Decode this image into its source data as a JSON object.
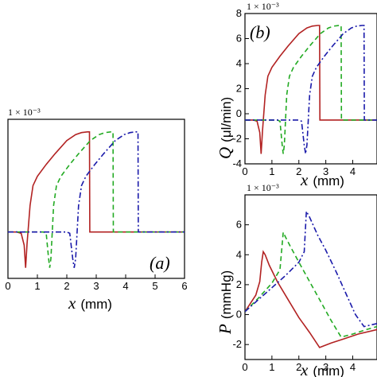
{
  "chart_data": [
    {
      "id": "a",
      "type": "line",
      "panel_label": "(a)",
      "multiplier": "1 × 10⁻³",
      "xlabel": "x",
      "xunit": "(mm)",
      "xlim": [
        0,
        6
      ],
      "xticks": [
        "0",
        "1",
        "2",
        "3",
        "4",
        "5",
        "6"
      ],
      "ylim": [
        -4,
        8
      ],
      "grid": false,
      "series": [
        {
          "color": "#b22222",
          "dash": "solid",
          "x": [
            0,
            0.3,
            0.45,
            0.55,
            0.6,
            0.65,
            0.75,
            0.85,
            1.0,
            1.3,
            1.6,
            2.0,
            2.3,
            2.5,
            2.7,
            2.77,
            2.78,
            2.8,
            3.5,
            4.5,
            6.0
          ],
          "y": [
            -0.5,
            -0.5,
            -0.6,
            -1.5,
            -3.2,
            -1.4,
            1.5,
            3.0,
            3.7,
            4.6,
            5.4,
            6.4,
            6.85,
            7.0,
            7.05,
            7.05,
            -0.5,
            -0.5,
            -0.5,
            -0.5,
            -0.5
          ]
        },
        {
          "color": "#22aa22",
          "dash": "6,4",
          "x": [
            0,
            1.2,
            1.3,
            1.38,
            1.42,
            1.46,
            1.55,
            1.65,
            1.8,
            2.1,
            2.4,
            2.8,
            3.1,
            3.3,
            3.5,
            3.57,
            3.58,
            3.6,
            4.5,
            6.0
          ],
          "y": [
            -0.5,
            -0.5,
            -0.6,
            -2.5,
            -3.2,
            -2.5,
            1.5,
            3.0,
            3.7,
            4.6,
            5.4,
            6.4,
            6.85,
            7.0,
            7.05,
            7.05,
            -0.5,
            -0.5,
            -0.5,
            -0.5
          ]
        },
        {
          "color": "#1a1aaa",
          "dash": "7,3,2,3",
          "x": [
            0,
            2.0,
            2.1,
            2.2,
            2.25,
            2.3,
            2.4,
            2.5,
            2.65,
            2.95,
            3.25,
            3.65,
            3.95,
            4.15,
            4.35,
            4.42,
            4.43,
            4.45,
            5.0,
            6.0
          ],
          "y": [
            -0.5,
            -0.5,
            -0.6,
            -2.5,
            -3.2,
            -2.5,
            1.5,
            3.0,
            3.7,
            4.6,
            5.4,
            6.4,
            6.85,
            7.0,
            7.05,
            7.05,
            -0.5,
            -0.5,
            -0.5,
            -0.5
          ]
        }
      ]
    },
    {
      "id": "b",
      "type": "line",
      "panel_label": "(b)",
      "multiplier": "1 × 10⁻³",
      "ylabel": "Q",
      "yunit": "(μl/min)",
      "xlabel": "x",
      "xunit": "(mm)",
      "xlim": [
        0,
        4.9
      ],
      "xticks": [
        "0",
        "1",
        "2",
        "3",
        "4"
      ],
      "ylim": [
        -4,
        8
      ],
      "yticks": [
        "-4",
        "-2",
        "0",
        "2",
        "4",
        "6",
        "8"
      ],
      "grid": false,
      "series": [
        {
          "color": "#b22222",
          "dash": "solid",
          "x": [
            0,
            0.3,
            0.45,
            0.55,
            0.6,
            0.65,
            0.75,
            0.85,
            1.0,
            1.3,
            1.6,
            2.0,
            2.3,
            2.5,
            2.7,
            2.77,
            2.78,
            2.8,
            3.5,
            4.5,
            4.9
          ],
          "y": [
            -0.5,
            -0.5,
            -0.6,
            -1.5,
            -3.2,
            -1.4,
            1.5,
            3.0,
            3.7,
            4.6,
            5.4,
            6.4,
            6.85,
            7.0,
            7.05,
            7.05,
            -0.5,
            -0.5,
            -0.5,
            -0.5,
            -0.5
          ]
        },
        {
          "color": "#22aa22",
          "dash": "6,4",
          "x": [
            0,
            1.2,
            1.3,
            1.38,
            1.42,
            1.46,
            1.55,
            1.65,
            1.8,
            2.1,
            2.4,
            2.8,
            3.1,
            3.3,
            3.5,
            3.57,
            3.58,
            3.6,
            4.5,
            4.9
          ],
          "y": [
            -0.5,
            -0.5,
            -0.6,
            -2.5,
            -3.2,
            -2.5,
            1.5,
            3.0,
            3.7,
            4.6,
            5.4,
            6.4,
            6.85,
            7.0,
            7.05,
            7.05,
            -0.5,
            -0.5,
            -0.5,
            -0.5
          ]
        },
        {
          "color": "#1a1aaa",
          "dash": "7,3,2,3",
          "x": [
            0,
            2.0,
            2.1,
            2.2,
            2.25,
            2.3,
            2.4,
            2.5,
            2.65,
            2.95,
            3.25,
            3.65,
            3.95,
            4.15,
            4.35,
            4.42,
            4.43,
            4.45,
            4.9
          ],
          "y": [
            -0.5,
            -0.5,
            -0.6,
            -2.5,
            -3.2,
            -2.5,
            1.5,
            3.0,
            3.7,
            4.6,
            5.4,
            6.4,
            6.85,
            7.0,
            7.05,
            7.05,
            -0.5,
            -0.5,
            -0.5
          ]
        }
      ]
    },
    {
      "id": "c",
      "type": "line",
      "multiplier": "1 × 10⁻³",
      "ylabel": "P",
      "yunit": "(mmHg)",
      "xlabel": "x",
      "xunit": "(mm)",
      "xlim": [
        0,
        4.9
      ],
      "xticks": [
        "0",
        "1",
        "2",
        "3",
        "4"
      ],
      "ylim": [
        -3,
        8
      ],
      "yticks": [
        "-2",
        "0",
        "2",
        "4",
        "6"
      ],
      "grid": false,
      "series": [
        {
          "color": "#b22222",
          "dash": "solid",
          "x": [
            0,
            0.4,
            0.55,
            0.62,
            0.68,
            0.75,
            0.9,
            1.2,
            1.6,
            2.0,
            2.4,
            2.77,
            3.2,
            3.7,
            4.2,
            4.9
          ],
          "y": [
            0.2,
            1.3,
            2.2,
            3.5,
            4.2,
            4.0,
            3.3,
            2.2,
            1.0,
            -0.2,
            -1.2,
            -2.2,
            -1.9,
            -1.6,
            -1.3,
            -1.0
          ]
        },
        {
          "color": "#22aa22",
          "dash": "6,4",
          "x": [
            0,
            0.5,
            1.0,
            1.3,
            1.42,
            1.5,
            1.7,
            2.0,
            2.4,
            2.8,
            3.2,
            3.57,
            4.0,
            4.5,
            4.9
          ],
          "y": [
            0.2,
            1.1,
            2.1,
            3.0,
            5.5,
            5.2,
            4.5,
            3.5,
            2.2,
            0.9,
            -0.4,
            -1.5,
            -1.3,
            -1.0,
            -0.8
          ]
        },
        {
          "color": "#1a1aaa",
          "dash": "7,3,2,3",
          "x": [
            0,
            0.5,
            1.0,
            1.5,
            2.0,
            2.2,
            2.28,
            2.4,
            2.7,
            3.0,
            3.4,
            3.8,
            4.1,
            4.42,
            4.9
          ],
          "y": [
            0.2,
            1.0,
            1.8,
            2.6,
            3.5,
            4.2,
            6.9,
            6.5,
            5.3,
            4.3,
            2.8,
            1.2,
            0.0,
            -0.8,
            -0.6
          ]
        }
      ]
    }
  ]
}
